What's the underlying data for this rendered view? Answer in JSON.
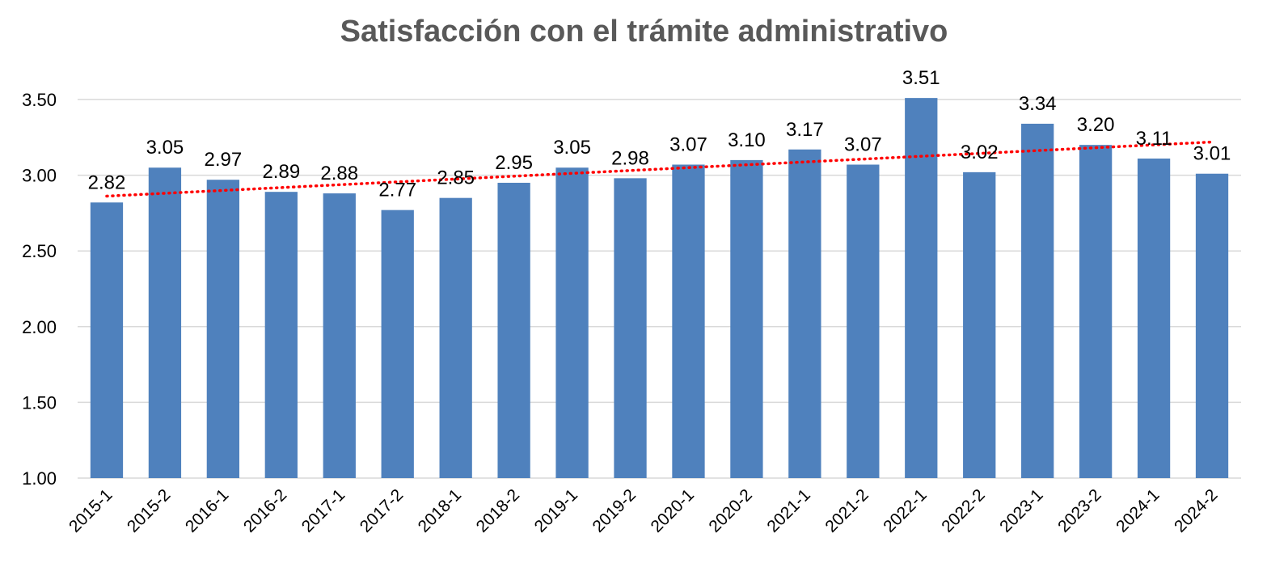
{
  "chart_data": {
    "type": "bar",
    "title": "Satisfacción con el trámite administrativo",
    "xlabel": "",
    "ylabel": "",
    "ylim": [
      1.0,
      3.5
    ],
    "yticks": [
      "1.00",
      "1.50",
      "2.00",
      "2.50",
      "3.00",
      "3.50"
    ],
    "categories": [
      "2015-1",
      "2015-2",
      "2016-1",
      "2016-2",
      "2017-1",
      "2017-2",
      "2018-1",
      "2018-2",
      "2019-1",
      "2019-2",
      "2020-1",
      "2020-2",
      "2021-1",
      "2021-2",
      "2022-1",
      "2022-2",
      "2023-1",
      "2023-2",
      "2024-1",
      "2024-2"
    ],
    "values": [
      2.82,
      3.05,
      2.97,
      2.89,
      2.88,
      2.77,
      2.85,
      2.95,
      3.05,
      2.98,
      3.07,
      3.1,
      3.17,
      3.07,
      3.51,
      3.02,
      3.34,
      3.2,
      3.11,
      3.01
    ],
    "data_labels": [
      "2.82",
      "3.05",
      "2.97",
      "2.89",
      "2.88",
      "2.77",
      "2.85",
      "2.95",
      "3.05",
      "2.98",
      "3.07",
      "3.10",
      "3.17",
      "3.07",
      "3.51",
      "3.02",
      "3.34",
      "3.20",
      "3.11",
      "3.01"
    ],
    "trendline": {
      "type": "linear",
      "style": "dotted"
    },
    "grid": true,
    "legend": "none",
    "colors": {
      "bar": "#4F81BD",
      "trendline": "#FF0000",
      "grid": "#D9D9D9",
      "title": "#595959"
    }
  }
}
